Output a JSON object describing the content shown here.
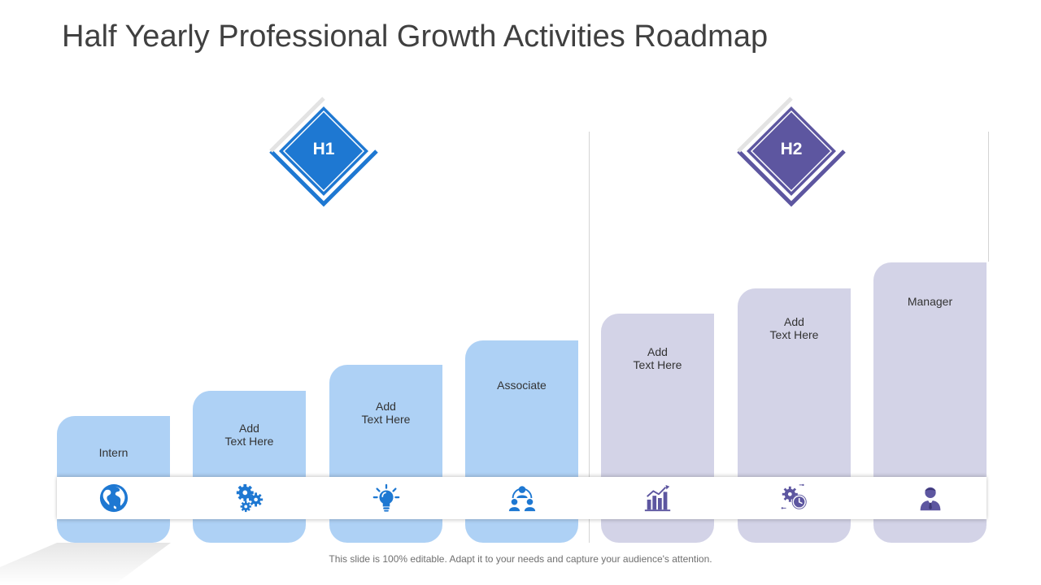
{
  "title": "Half Yearly Professional Growth Activities Roadmap",
  "colors": {
    "h1_accent": "#1e78d2",
    "h2_accent": "#5d56a0",
    "h1_bar": "#aed1f5",
    "h2_bar": "#d3d3e7"
  },
  "halves": [
    {
      "label": "H1"
    },
    {
      "label": "H2"
    }
  ],
  "steps": [
    {
      "line1": "Intern",
      "line2": "",
      "icon": "globe-icon"
    },
    {
      "line1": "Add",
      "line2": "Text Here",
      "icon": "gears-icon"
    },
    {
      "line1": "Add",
      "line2": "Text Here",
      "icon": "lightbulb-icon"
    },
    {
      "line1": "Associate",
      "line2": "",
      "icon": "team-icon"
    },
    {
      "line1": "Add",
      "line2": "Text Here",
      "icon": "bar-chart-icon"
    },
    {
      "line1": "Add",
      "line2": "Text Here",
      "icon": "time-settings-icon"
    },
    {
      "line1": "Manager",
      "line2": "",
      "icon": "businessman-icon"
    }
  ],
  "footer": "This slide is 100% editable. Adapt it to your needs and capture your audience's attention."
}
